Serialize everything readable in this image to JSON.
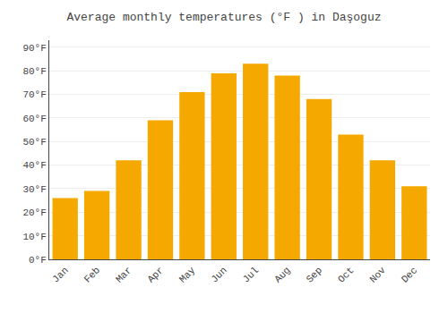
{
  "chart_data": {
    "type": "bar",
    "title": "Average monthly temperatures (°F ) in Daşoguz",
    "categories": [
      "Jan",
      "Feb",
      "Mar",
      "Apr",
      "May",
      "Jun",
      "Jul",
      "Aug",
      "Sep",
      "Oct",
      "Nov",
      "Dec"
    ],
    "values": [
      26,
      29,
      42,
      59,
      71,
      79,
      83,
      78,
      68,
      53,
      42,
      31
    ],
    "color": "#F5A800",
    "ylim": [
      0,
      93
    ],
    "yticks": [
      {
        "value": 0,
        "label": "0°F"
      },
      {
        "value": 10,
        "label": "10°F"
      },
      {
        "value": 20,
        "label": "20°F"
      },
      {
        "value": 30,
        "label": "30°F"
      },
      {
        "value": 40,
        "label": "40°F"
      },
      {
        "value": 50,
        "label": "50°F"
      },
      {
        "value": 60,
        "label": "60°F"
      },
      {
        "value": 70,
        "label": "70°F"
      },
      {
        "value": 80,
        "label": "80°F"
      },
      {
        "value": 90,
        "label": "90°F"
      }
    ],
    "grid": true
  }
}
